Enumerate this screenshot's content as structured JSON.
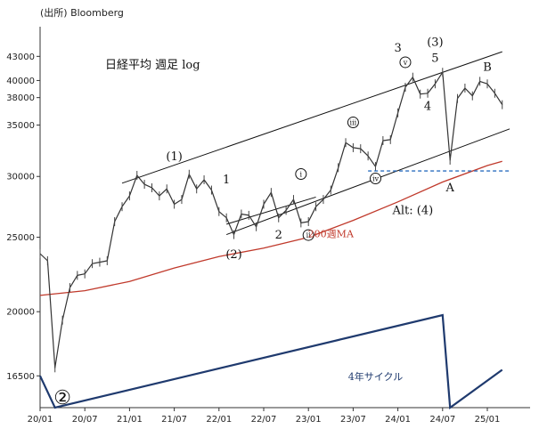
{
  "source": "(出所) Bloomberg",
  "chart_data": {
    "type": "line",
    "title": "日経平均 週足 log",
    "ylabel": "",
    "xlabel": "",
    "y_scale": "log",
    "ylim": [
      15000,
      47000
    ],
    "y_ticks": [
      43000,
      40000,
      38000,
      35000,
      30000,
      25000,
      20000,
      16500
    ],
    "y_tick_labels": [
      "43000",
      "40000",
      "38000",
      "35000",
      "30000",
      "25000",
      "20000",
      "16500"
    ],
    "x_tick_labels": [
      "20/01",
      "20/07",
      "21/01",
      "21/07",
      "22/01",
      "22/07",
      "23/01",
      "23/07",
      "24/01",
      "24/07",
      "25/01"
    ],
    "x_ticks": [
      "2020-01",
      "2020-07",
      "2021-01",
      "2021-07",
      "2022-01",
      "2022-07",
      "2023-01",
      "2023-07",
      "2024-01",
      "2024-07",
      "2025-01"
    ],
    "grid": false,
    "series": [
      {
        "name": "",
        "points": [
          [
            "2020-01",
            23800
          ],
          [
            "2020-02",
            23300
          ],
          [
            "2020-03",
            16900
          ],
          [
            "2020-04",
            19500
          ],
          [
            "2020-05",
            21500
          ],
          [
            "2020-06",
            22300
          ],
          [
            "2020-07",
            22400
          ],
          [
            "2020-08",
            23100
          ],
          [
            "2020-09",
            23200
          ],
          [
            "2020-10",
            23300
          ],
          [
            "2020-11",
            26200
          ],
          [
            "2020-12",
            27400
          ],
          [
            "2021-01",
            28300
          ],
          [
            "2021-02",
            30100
          ],
          [
            "2021-03",
            29300
          ],
          [
            "2021-04",
            29000
          ],
          [
            "2021-05",
            28300
          ],
          [
            "2021-06",
            28900
          ],
          [
            "2021-07",
            27600
          ],
          [
            "2021-08",
            28000
          ],
          [
            "2021-09",
            30200
          ],
          [
            "2021-10",
            28900
          ],
          [
            "2021-11",
            29700
          ],
          [
            "2021-12",
            28800
          ],
          [
            "2022-01",
            27000
          ],
          [
            "2022-02",
            26500
          ],
          [
            "2022-03",
            25200
          ],
          [
            "2022-04",
            26800
          ],
          [
            "2022-05",
            26700
          ],
          [
            "2022-06",
            25800
          ],
          [
            "2022-07",
            27600
          ],
          [
            "2022-08",
            28600
          ],
          [
            "2022-09",
            26500
          ],
          [
            "2022-10",
            27100
          ],
          [
            "2022-11",
            28000
          ],
          [
            "2022-12",
            26100
          ],
          [
            "2023-01",
            26200
          ],
          [
            "2023-02",
            27400
          ],
          [
            "2023-03",
            28000
          ],
          [
            "2023-04",
            28800
          ],
          [
            "2023-05",
            30800
          ],
          [
            "2023-06",
            33200
          ],
          [
            "2023-07",
            32700
          ],
          [
            "2023-08",
            32600
          ],
          [
            "2023-09",
            31900
          ],
          [
            "2023-10",
            30900
          ],
          [
            "2023-11",
            33400
          ],
          [
            "2023-12",
            33500
          ],
          [
            "2024-01",
            36300
          ],
          [
            "2024-02",
            39200
          ],
          [
            "2024-03",
            40400
          ],
          [
            "2024-04",
            38400
          ],
          [
            "2024-05",
            38500
          ],
          [
            "2024-06",
            39600
          ],
          [
            "2024-07",
            41000
          ],
          [
            "2024-08",
            31500
          ],
          [
            "2024-09",
            37900
          ],
          [
            "2024-10",
            39100
          ],
          [
            "2024-11",
            38200
          ],
          [
            "2024-12",
            39900
          ],
          [
            "2025-01",
            39600
          ],
          [
            "2025-02",
            38500
          ],
          [
            "2025-03",
            37200
          ]
        ]
      },
      {
        "name": "200週MA",
        "points": [
          [
            "2020-01",
            21000
          ],
          [
            "2020-07",
            21300
          ],
          [
            "2021-01",
            21900
          ],
          [
            "2021-07",
            22800
          ],
          [
            "2022-01",
            23600
          ],
          [
            "2022-07",
            24200
          ],
          [
            "2023-01",
            25000
          ],
          [
            "2023-07",
            26300
          ],
          [
            "2024-01",
            27800
          ],
          [
            "2024-07",
            29500
          ],
          [
            "2025-01",
            31000
          ],
          [
            "2025-03",
            31400
          ]
        ]
      }
    ],
    "channel_lines": [
      {
        "points": [
          [
            "2020-12",
            29400
          ],
          [
            "2025-03",
            43600
          ]
        ]
      },
      {
        "points": [
          [
            "2022-02",
            25200
          ],
          [
            "2025-04",
            34600
          ]
        ]
      },
      {
        "points": [
          [
            "2022-02",
            26000
          ],
          [
            "2023-02",
            28200
          ]
        ]
      }
    ],
    "reference_line": {
      "y": 30500,
      "x_start": "2023-09",
      "x_end": "2025-04",
      "color": "#2c6fbf",
      "style": "dashed"
    },
    "cycle_line": {
      "label": "4年サイクル",
      "color": "#1f3a6e",
      "points": [
        [
          "2020-01",
          16500
        ],
        [
          "2020-03",
          14500
        ],
        [
          "2024-07",
          19800
        ],
        [
          "2024-08",
          14500
        ],
        [
          "2025-03",
          16800
        ]
      ]
    },
    "annotations": [
      {
        "text": "(1)",
        "x": "2021-07",
        "y": 31500
      },
      {
        "text": "1",
        "x": "2022-02",
        "y": 29400
      },
      {
        "text": "(2)",
        "x": "2022-03",
        "y": 23500
      },
      {
        "text": "2",
        "x": "2022-09",
        "y": 24900
      },
      {
        "text": "ⅰ",
        "x": "2022-12",
        "y": 29900,
        "circled": true
      },
      {
        "text": "ⅱ",
        "x": "2023-01",
        "y": 24900,
        "circled": true
      },
      {
        "text": "ⅲ",
        "x": "2023-07",
        "y": 34900,
        "circled": true
      },
      {
        "text": "ⅳ",
        "x": "2023-10",
        "y": 29500,
        "circled": true
      },
      {
        "text": "3",
        "x": "2024-01",
        "y": 43600
      },
      {
        "text": "ⅴ",
        "x": "2024-02",
        "y": 41800,
        "circled": true
      },
      {
        "text": "(3)",
        "x": "2024-06",
        "y": 44400
      },
      {
        "text": "5",
        "x": "2024-06",
        "y": 42300
      },
      {
        "text": "4",
        "x": "2024-05",
        "y": 36600
      },
      {
        "text": "B",
        "x": "2025-01",
        "y": 41200
      },
      {
        "text": "A",
        "x": "2024-08",
        "y": 28700
      },
      {
        "text": "Alt: (4)",
        "x": "2024-03",
        "y": 26800
      },
      {
        "text": "200週MA",
        "x": "2023-04",
        "y": 25000,
        "color": "red"
      },
      {
        "text": "4年サイクル",
        "x": "2023-10",
        "y": 16300,
        "color": "blue"
      },
      {
        "text": "②",
        "x": "2020-04",
        "y": 14700,
        "large": true
      }
    ]
  }
}
